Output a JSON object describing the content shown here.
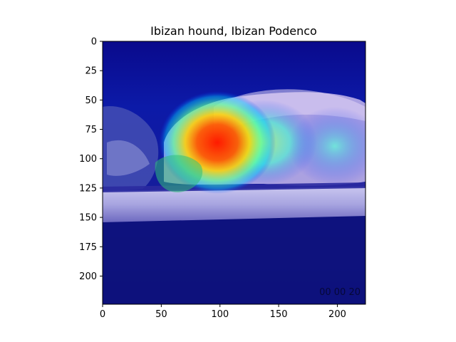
{
  "figure": {
    "title": "Ibizan hound, Ibizan Podenco",
    "image_description_free": true,
    "x_axis": {
      "range": [
        0,
        224
      ],
      "ticks": [
        0,
        50,
        100,
        150,
        200
      ]
    },
    "y_axis": {
      "range": [
        0,
        224
      ],
      "inverted": true,
      "ticks": [
        0,
        25,
        50,
        75,
        100,
        125,
        150,
        175,
        200
      ]
    },
    "colormap": "jet",
    "overlay": "heatmap"
  }
}
